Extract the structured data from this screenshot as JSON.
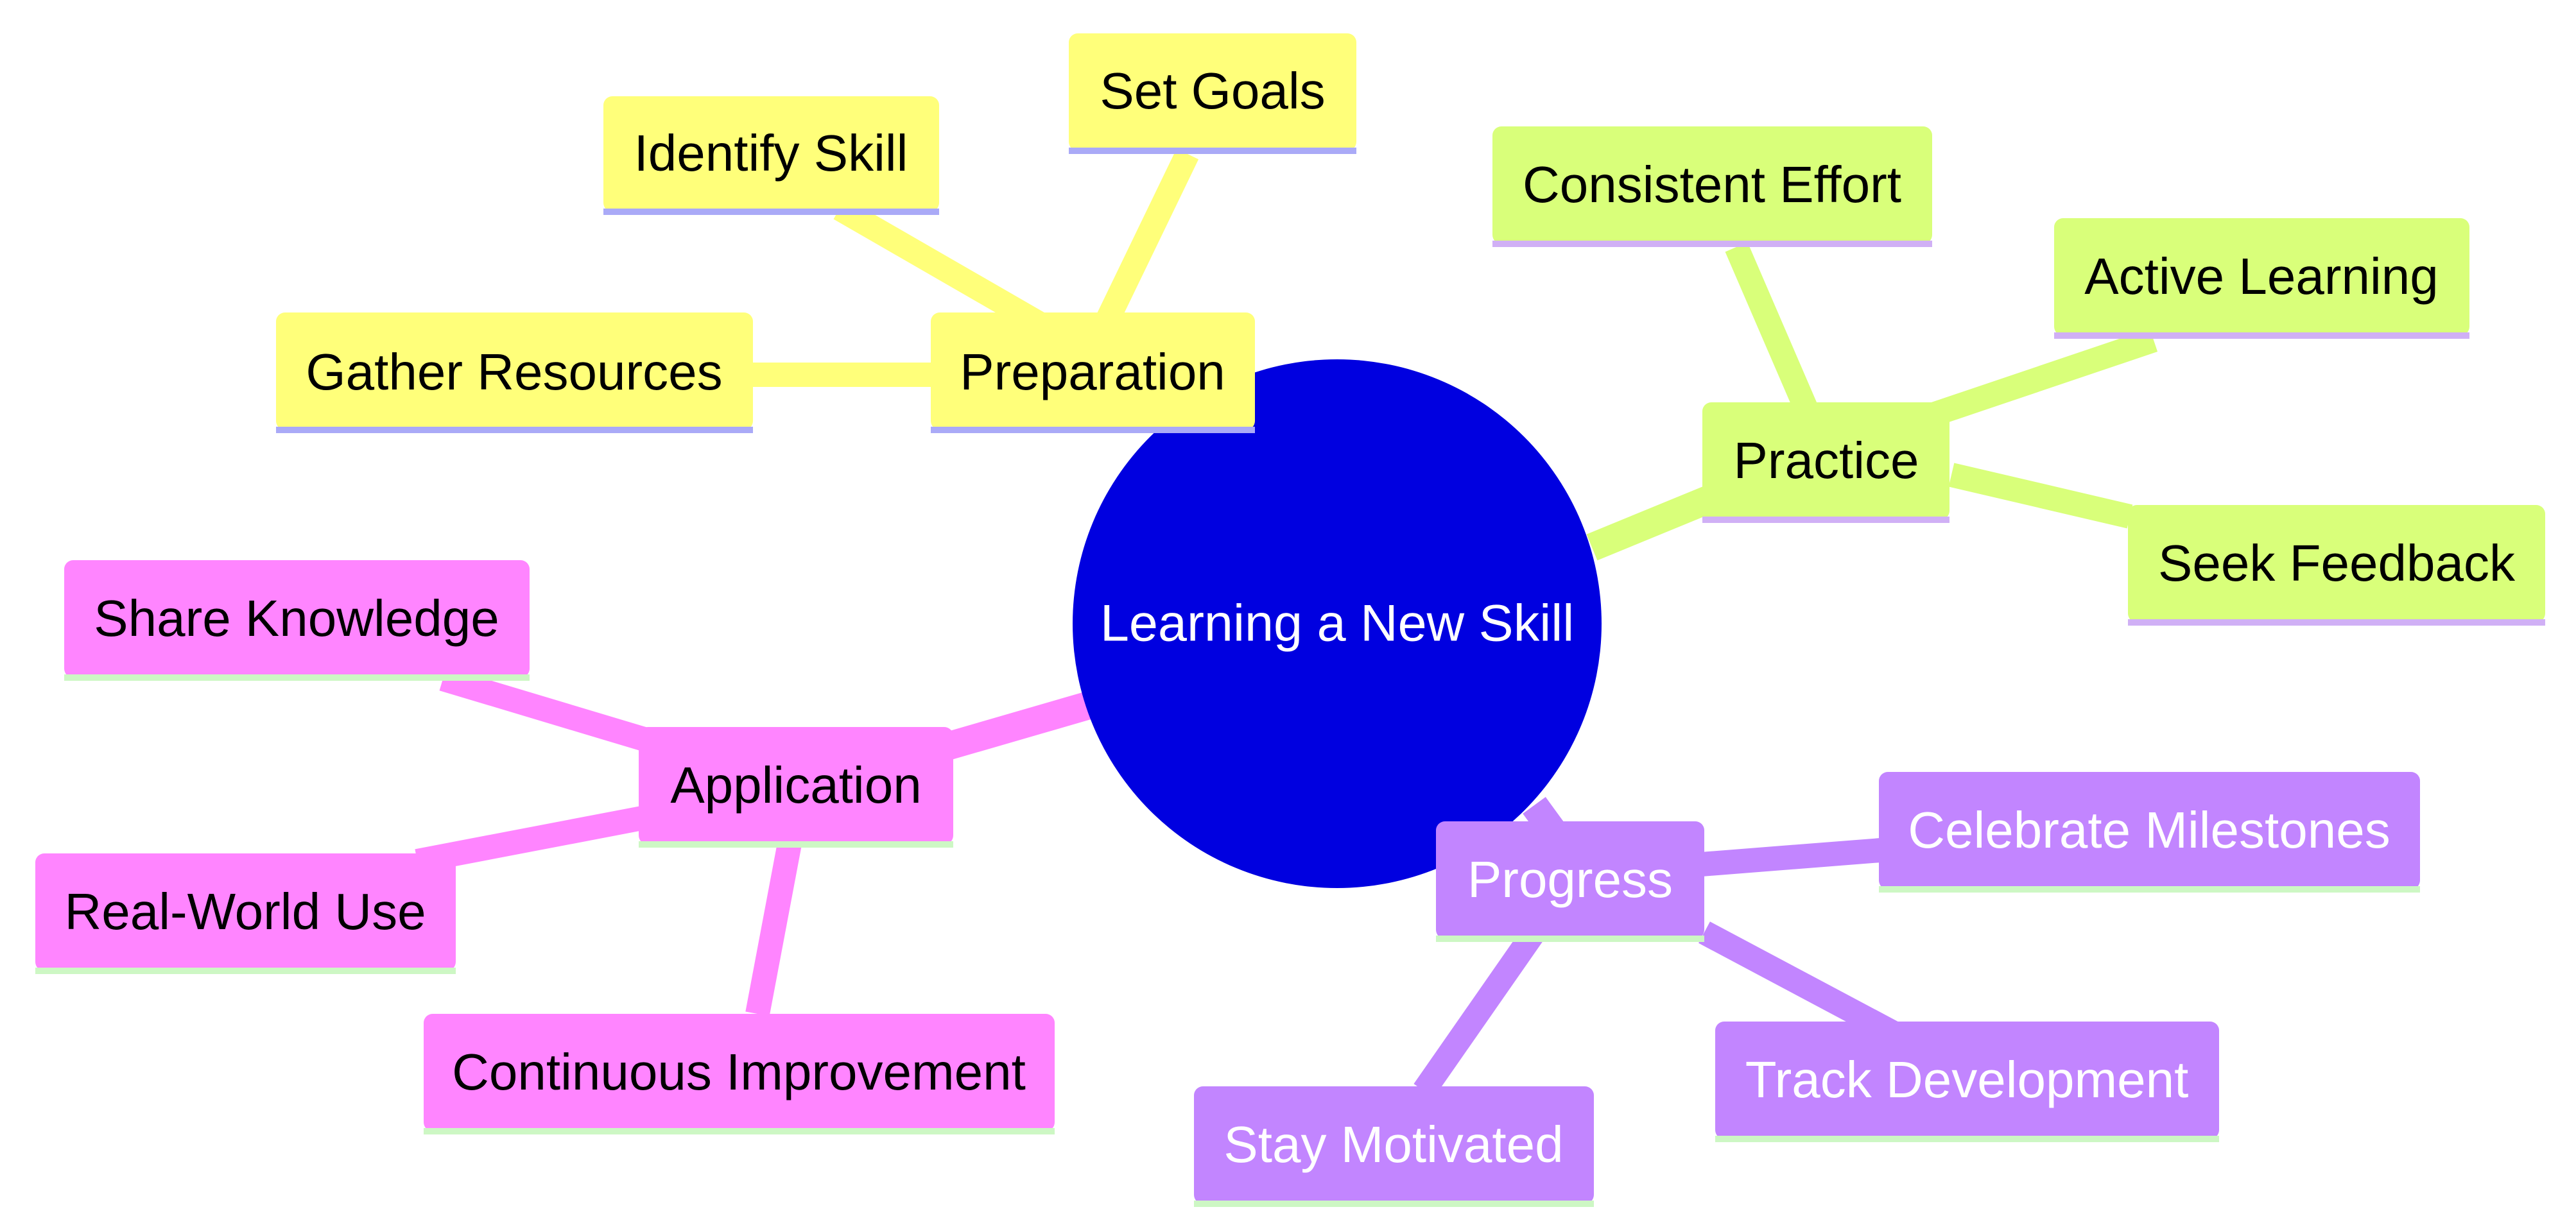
{
  "root": {
    "label": "Learning a New Skill",
    "color": "#0000e0",
    "text_color": "#ffffff"
  },
  "colors": {
    "preparation": {
      "fill": "#ffff7a",
      "edge": "#ffff7a",
      "underline": "#aaaaf7",
      "text": "#000000"
    },
    "practice": {
      "fill": "#d9ff7a",
      "edge": "#d9ff7a",
      "underline": "#d0b0f5",
      "text": "#000000"
    },
    "progress": {
      "fill": "#c285ff",
      "edge": "#c285ff",
      "underline": "#cdf7c4",
      "text": "#ffffff"
    },
    "application": {
      "fill": "#ff85ff",
      "edge": "#ff85ff",
      "underline": "#cdf7c4",
      "text": "#000000"
    }
  },
  "branches": {
    "preparation": {
      "label": "Preparation",
      "children": [
        "Identify Skill",
        "Set Goals",
        "Gather Resources"
      ]
    },
    "practice": {
      "label": "Practice",
      "children": [
        "Consistent Effort",
        "Active Learning",
        "Seek Feedback"
      ]
    },
    "progress": {
      "label": "Progress",
      "children": [
        "Celebrate Milestones",
        "Track Development",
        "Stay Motivated"
      ]
    },
    "application": {
      "label": "Application",
      "children": [
        "Share Knowledge",
        "Real-World Use",
        "Continuous Improvement"
      ]
    }
  }
}
